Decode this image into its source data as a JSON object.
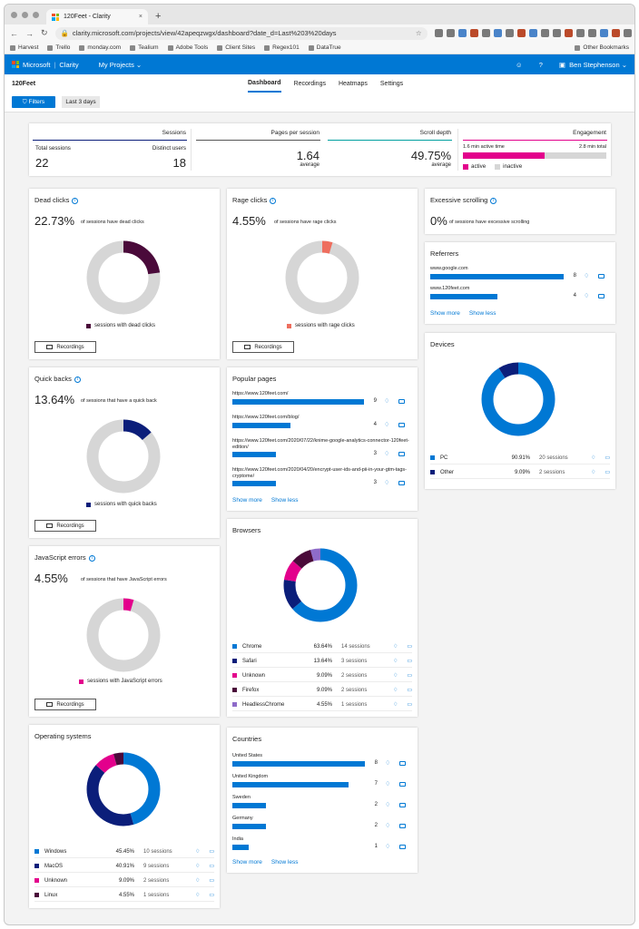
{
  "browser": {
    "tab_title": "120Feet - Clarity",
    "tab_close": "×",
    "new_tab": "+",
    "url": "clarity.microsoft.com/projects/view/42apeqzwgx/dashboard?date_d=Last%203%20days",
    "bookmarks": [
      "Harvest",
      "Trello",
      "monday.com",
      "Tealium",
      "Adobe Tools",
      "Client Sites",
      "Regex101",
      "DataTrue"
    ],
    "other_bookmarks": "Other Bookmarks",
    "avatar": "B"
  },
  "appbar": {
    "brand": "Microsoft",
    "product": "Clarity",
    "projects": "My Projects",
    "user": "Ben Stephenson"
  },
  "subnav": {
    "project": "120Feet",
    "tabs": [
      "Dashboard",
      "Recordings",
      "Heatmaps",
      "Settings"
    ],
    "active_tab": "Dashboard"
  },
  "filters": {
    "filters_label": "Filters",
    "date_label": "Last 3 days"
  },
  "summary": {
    "sessions": {
      "title": "Sessions",
      "total_label": "Total sessions",
      "total": "22",
      "distinct_label": "Distinct users",
      "distinct": "18"
    },
    "pages": {
      "title": "Pages per session",
      "value": "1.64",
      "sub": "average"
    },
    "scroll": {
      "title": "Scroll depth",
      "value": "49.75%",
      "sub": "average"
    },
    "engagement": {
      "title": "Engagement",
      "active_time": "1.6 min active time",
      "total_time": "2.8 min total",
      "active_label": "active",
      "inactive_label": "inactive",
      "active_fraction": 0.57
    }
  },
  "colors": {
    "blue": "#0078d4",
    "navy": "#0b1e7a",
    "magenta": "#e3008c",
    "maroon": "#4a0a3a",
    "lavender": "#8e6bc9",
    "red": "#ee6e5e",
    "grey": "#d6d6d6"
  },
  "dead_clicks": {
    "title": "Dead clicks",
    "pct": "22.73%",
    "desc": "of sessions have dead clicks",
    "legend": "sessions with dead clicks",
    "fraction": 0.2273,
    "button": "Recordings"
  },
  "rage_clicks": {
    "title": "Rage clicks",
    "pct": "4.55%",
    "desc": "of sessions have rage clicks",
    "legend": "sessions with rage clicks",
    "fraction": 0.0455,
    "button": "Recordings"
  },
  "excessive_scrolling": {
    "title": "Excessive scrolling",
    "pct": "0%",
    "desc": "of sessions have excessive scrolling"
  },
  "quick_backs": {
    "title": "Quick backs",
    "pct": "13.64%",
    "desc": "of sessions that have a quick back",
    "legend": "sessions with quick backs",
    "fraction": 0.1364,
    "button": "Recordings"
  },
  "js_errors": {
    "title": "JavaScript errors",
    "pct": "4.55%",
    "desc": "of sessions that have JavaScript errors",
    "legend": "sessions with JavaScript errors",
    "fraction": 0.0455,
    "button": "Recordings"
  },
  "referrers": {
    "title": "Referrers",
    "items": [
      {
        "name": "www.google.com",
        "count": "8",
        "value": 8
      },
      {
        "name": "www.120feet.com",
        "count": "4",
        "value": 4
      }
    ],
    "show_more": "Show more",
    "show_less": "Show less"
  },
  "popular_pages": {
    "title": "Popular pages",
    "items": [
      {
        "url": "https://www.120feet.com/",
        "count": "9",
        "value": 9
      },
      {
        "url": "https://www.120feet.com/blog/",
        "count": "4",
        "value": 4
      },
      {
        "url": "https://www.120feet.com/2020/07/22/knime-google-analytics-connector-120feet-edition/",
        "count": "3",
        "value": 3
      },
      {
        "url": "https://www.120feet.com/2020/04/20/encrypt-user-ids-and-pii-in-your-gtm-tags-cryptome/",
        "count": "3",
        "value": 3
      }
    ],
    "show_more": "Show more",
    "show_less": "Show less"
  },
  "devices": {
    "title": "Devices",
    "items": [
      {
        "name": "PC",
        "pct": "90.91%",
        "sessions": "20 sessions",
        "value": 90.91,
        "color": "#0078d4"
      },
      {
        "name": "Other",
        "pct": "9.09%",
        "sessions": "2 sessions",
        "value": 9.09,
        "color": "#0b1e7a"
      }
    ]
  },
  "browsers": {
    "title": "Browsers",
    "items": [
      {
        "name": "Chrome",
        "pct": "63.64%",
        "sessions": "14 sessions",
        "value": 63.64,
        "color": "#0078d4"
      },
      {
        "name": "Safari",
        "pct": "13.64%",
        "sessions": "3 sessions",
        "value": 13.64,
        "color": "#0b1e7a"
      },
      {
        "name": "Unknown",
        "pct": "9.09%",
        "sessions": "2 sessions",
        "value": 9.09,
        "color": "#e3008c"
      },
      {
        "name": "Firefox",
        "pct": "9.09%",
        "sessions": "2 sessions",
        "value": 9.09,
        "color": "#4a0a3a"
      },
      {
        "name": "HeadlessChrome",
        "pct": "4.55%",
        "sessions": "1 sessions",
        "value": 4.55,
        "color": "#8e6bc9"
      }
    ]
  },
  "operating_systems": {
    "title": "Operating systems",
    "items": [
      {
        "name": "Windows",
        "pct": "45.45%",
        "sessions": "10 sessions",
        "value": 45.45,
        "color": "#0078d4"
      },
      {
        "name": "MacOS",
        "pct": "40.91%",
        "sessions": "9 sessions",
        "value": 40.91,
        "color": "#0b1e7a"
      },
      {
        "name": "Unknown",
        "pct": "9.09%",
        "sessions": "2 sessions",
        "value": 9.09,
        "color": "#e3008c"
      },
      {
        "name": "Linux",
        "pct": "4.55%",
        "sessions": "1 sessions",
        "value": 4.55,
        "color": "#4a0a3a"
      }
    ]
  },
  "countries": {
    "title": "Countries",
    "items": [
      {
        "name": "United States",
        "count": "8",
        "value": 8
      },
      {
        "name": "United Kingdom",
        "count": "7",
        "value": 7
      },
      {
        "name": "Sweden",
        "count": "2",
        "value": 2
      },
      {
        "name": "Germany",
        "count": "2",
        "value": 2
      },
      {
        "name": "India",
        "count": "1",
        "value": 1
      }
    ],
    "show_more": "Show more",
    "show_less": "Show less"
  }
}
